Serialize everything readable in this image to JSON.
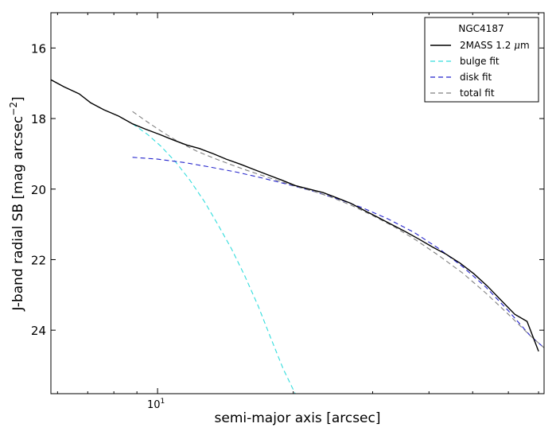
{
  "chart_data": {
    "type": "line",
    "title": "",
    "xlabel": "semi-major axis [arcsec]",
    "ylabel": "J-band radial SB [mag arcsec",
    "ylabel_sup": "−2",
    "ylabel_end": "]",
    "x_scale": "log",
    "xlim": [
      5.8,
      72
    ],
    "ylim": [
      25.8,
      15.0
    ],
    "y_inverted": true,
    "x_ticks": [
      {
        "value": 10,
        "label_base": "10",
        "label_exp": "1"
      }
    ],
    "y_ticks": [
      {
        "value": 16,
        "label": "16"
      },
      {
        "value": 18,
        "label": "18"
      },
      {
        "value": 20,
        "label": "20"
      },
      {
        "value": 22,
        "label": "22"
      },
      {
        "value": 24,
        "label": "24"
      }
    ],
    "legend": {
      "placement": "top-right",
      "title": "NGC4187"
    },
    "series": [
      {
        "name": "2MASS 1.2 μm",
        "name_prefix": "2MASS 1.2 ",
        "name_mu": "μ",
        "name_suffix": "m",
        "color": "#000000",
        "style": "solid",
        "x": [
          5.8,
          6.2,
          6.7,
          7.1,
          7.6,
          8.2,
          8.8,
          9.4,
          10.1,
          10.8,
          11.6,
          12.4,
          13.3,
          14.2,
          15.3,
          16.4,
          17.6,
          18.9,
          20.2,
          21.7,
          23.3,
          25.0,
          26.8,
          28.7,
          30.8,
          33.0,
          35.4,
          38.0,
          40.8,
          43.7,
          46.9,
          50.3,
          53.9,
          57.8,
          62.0,
          66.0,
          70.0
        ],
        "y": [
          16.9,
          17.1,
          17.3,
          17.55,
          17.75,
          17.93,
          18.15,
          18.3,
          18.45,
          18.6,
          18.75,
          18.85,
          19.0,
          19.15,
          19.3,
          19.45,
          19.6,
          19.75,
          19.9,
          20.0,
          20.1,
          20.25,
          20.4,
          20.6,
          20.8,
          21.0,
          21.2,
          21.42,
          21.65,
          21.85,
          22.1,
          22.4,
          22.75,
          23.15,
          23.55,
          23.75,
          24.6
        ]
      },
      {
        "name": "bulge fit",
        "color": "#33dddd",
        "style": "dashed",
        "x": [
          8.8,
          9.5,
          10.2,
          11.0,
          11.8,
          12.7,
          13.6,
          14.6,
          15.6,
          16.7,
          17.8,
          19.0,
          20.2
        ],
        "y": [
          18.15,
          18.45,
          18.8,
          19.25,
          19.75,
          20.35,
          21.0,
          21.7,
          22.45,
          23.3,
          24.2,
          25.1,
          25.8
        ]
      },
      {
        "name": "disk fit",
        "color": "#2222cc",
        "style": "dashed",
        "x": [
          8.8,
          10.0,
          11.5,
          13.0,
          15.0,
          17.0,
          19.5,
          22.0,
          25.0,
          28.5,
          32.5,
          37.0,
          42.0,
          47.5,
          53.5,
          60.0,
          67.0,
          72.0
        ],
        "y": [
          19.1,
          19.15,
          19.25,
          19.37,
          19.52,
          19.68,
          19.87,
          20.05,
          20.27,
          20.53,
          20.85,
          21.22,
          21.68,
          22.2,
          22.78,
          23.45,
          24.15,
          24.5
        ]
      },
      {
        "name": "total fit",
        "color": "#808080",
        "style": "dashed",
        "x": [
          8.8,
          9.5,
          10.3,
          11.2,
          12.2,
          13.3,
          14.5,
          15.8,
          17.2,
          18.7,
          20.4,
          22.3,
          24.5,
          27.0,
          30.0,
          33.5,
          37.5,
          42.0,
          47.5,
          53.5,
          60.0,
          67.0,
          72.0
        ],
        "y": [
          17.8,
          18.1,
          18.4,
          18.68,
          18.92,
          19.12,
          19.3,
          19.47,
          19.63,
          19.78,
          19.93,
          20.07,
          20.25,
          20.47,
          20.75,
          21.07,
          21.45,
          21.88,
          22.38,
          22.95,
          23.55,
          24.15,
          24.5
        ]
      }
    ]
  }
}
